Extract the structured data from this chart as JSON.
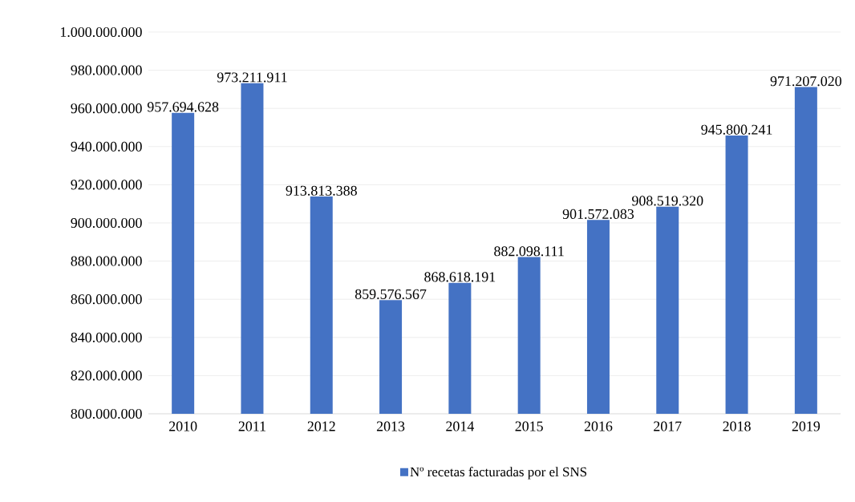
{
  "chart_data": {
    "type": "bar",
    "categories": [
      "2010",
      "2011",
      "2012",
      "2013",
      "2014",
      "2015",
      "2016",
      "2017",
      "2018",
      "2019"
    ],
    "series": [
      {
        "name": "Nº recetas facturadas por el SNS",
        "color": "#4472c4",
        "values": [
          957694628,
          973211911,
          913813388,
          859576567,
          868618191,
          882098111,
          901572083,
          908519320,
          945800241,
          971207020
        ],
        "value_labels": [
          "957.694.628",
          "973.211.911",
          "913.813.388",
          "859.576.567",
          "868.618.191",
          "882.098.111",
          "901.572.083",
          "908.519.320",
          "945.800.241",
          "971.207.020"
        ]
      }
    ],
    "ylim": [
      800000000,
      1000000000
    ],
    "yticks": [
      {
        "value": 800000000,
        "label": "800.000.000"
      },
      {
        "value": 820000000,
        "label": "820.000.000"
      },
      {
        "value": 840000000,
        "label": "840.000.000"
      },
      {
        "value": 860000000,
        "label": "860.000.000"
      },
      {
        "value": 880000000,
        "label": "880.000.000"
      },
      {
        "value": 900000000,
        "label": "900.000.000"
      },
      {
        "value": 920000000,
        "label": "920.000.000"
      },
      {
        "value": 940000000,
        "label": "940.000.000"
      },
      {
        "value": 960000000,
        "label": "960.000.000"
      },
      {
        "value": 980000000,
        "label": "980.000.000"
      },
      {
        "value": 1000000000,
        "label": "1.000.000.000"
      }
    ],
    "grid": "y",
    "legend": "bottom"
  }
}
